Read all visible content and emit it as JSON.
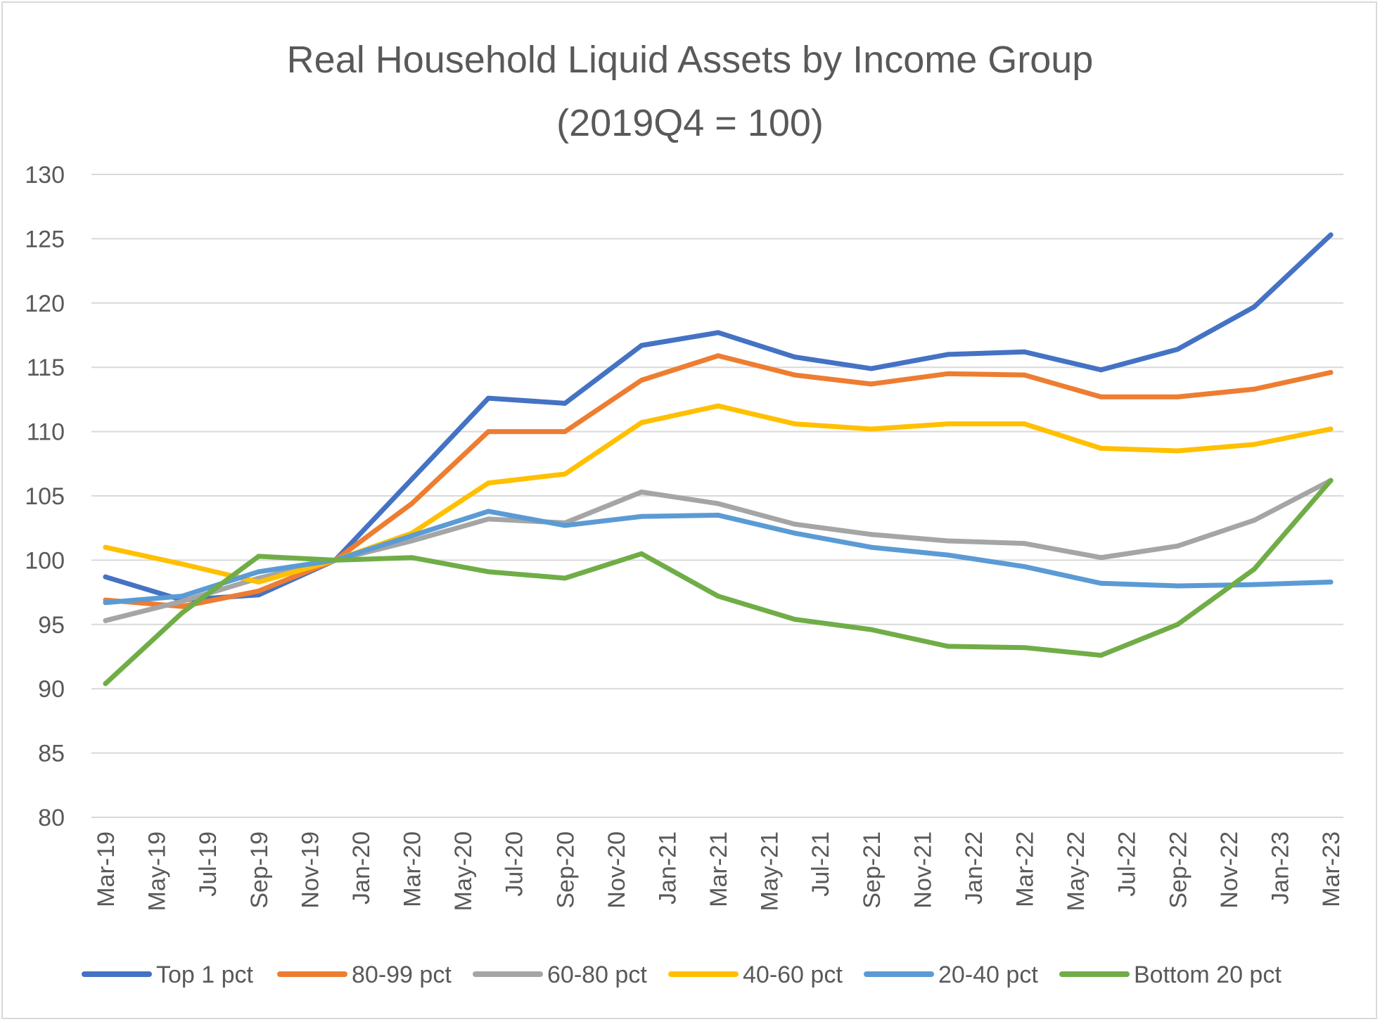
{
  "chart_data": {
    "type": "line",
    "title": "Real Household Liquid Assets by Income Group",
    "subtitle": "(2019Q4 = 100)",
    "xlabel": "",
    "ylabel": "",
    "ylim": [
      80,
      130
    ],
    "y_ticks": [
      "80",
      "85",
      "90",
      "95",
      "100",
      "105",
      "110",
      "115",
      "120",
      "125",
      "130"
    ],
    "x_tick_labels": [
      "Mar-19",
      "May-19",
      "Jul-19",
      "Sep-19",
      "Nov-19",
      "Jan-20",
      "Mar-20",
      "May-20",
      "Jul-20",
      "Sep-20",
      "Nov-20",
      "Jan-21",
      "Mar-21",
      "May-21",
      "Jul-21",
      "Sep-21",
      "Nov-21",
      "Jan-22",
      "Mar-22",
      "May-22",
      "Jul-22",
      "Sep-22",
      "Nov-22",
      "Jan-23",
      "Mar-23"
    ],
    "x": [
      "Mar-19",
      "Jun-19",
      "Sep-19",
      "Dec-19",
      "Mar-20",
      "Jun-20",
      "Sep-20",
      "Dec-20",
      "Mar-21",
      "Jun-21",
      "Sep-21",
      "Dec-21",
      "Mar-22",
      "Jun-22",
      "Sep-22",
      "Dec-22",
      "Mar-23"
    ],
    "x_month_index": [
      0,
      3,
      6,
      9,
      12,
      15,
      18,
      21,
      24,
      27,
      30,
      33,
      36,
      39,
      42,
      45,
      48
    ],
    "grid": true,
    "legend_position": "bottom",
    "series": [
      {
        "name": "Top 1 pct",
        "color": "#4472c4",
        "values": [
          98.7,
          96.9,
          97.3,
          100,
          106.3,
          112.6,
          112.2,
          116.7,
          117.7,
          115.8,
          114.9,
          116.0,
          116.2,
          114.8,
          116.4,
          119.7,
          125.3
        ]
      },
      {
        "name": "80-99 pct",
        "color": "#ed7d31",
        "values": [
          96.9,
          96.4,
          97.6,
          100,
          104.4,
          110.0,
          110.0,
          114.0,
          115.9,
          114.4,
          113.7,
          114.5,
          114.4,
          112.7,
          112.7,
          113.3,
          114.6
        ]
      },
      {
        "name": "60-80 pct",
        "color": "#a5a5a5",
        "values": [
          95.3,
          96.8,
          98.6,
          100,
          101.5,
          103.2,
          102.9,
          105.3,
          104.4,
          102.8,
          102.0,
          101.5,
          101.3,
          100.2,
          101.1,
          103.1,
          106.2
        ]
      },
      {
        "name": "40-60 pct",
        "color": "#ffc000",
        "values": [
          101.0,
          99.7,
          98.3,
          100,
          102.1,
          106.0,
          106.7,
          110.7,
          112.0,
          110.6,
          110.2,
          110.6,
          110.6,
          108.7,
          108.5,
          109.0,
          110.2
        ]
      },
      {
        "name": "20-40 pct",
        "color": "#5b9bd5",
        "values": [
          96.7,
          97.2,
          99.1,
          100,
          101.9,
          103.8,
          102.7,
          103.4,
          103.5,
          102.1,
          101.0,
          100.4,
          99.5,
          98.2,
          98.0,
          98.1,
          98.3
        ]
      },
      {
        "name": "Bottom 20 pct",
        "color": "#70ad47",
        "values": [
          90.4,
          95.9,
          100.3,
          100,
          100.2,
          99.1,
          98.6,
          100.5,
          97.2,
          95.4,
          94.6,
          93.3,
          93.2,
          92.6,
          95.0,
          99.3,
          106.2
        ]
      }
    ]
  }
}
